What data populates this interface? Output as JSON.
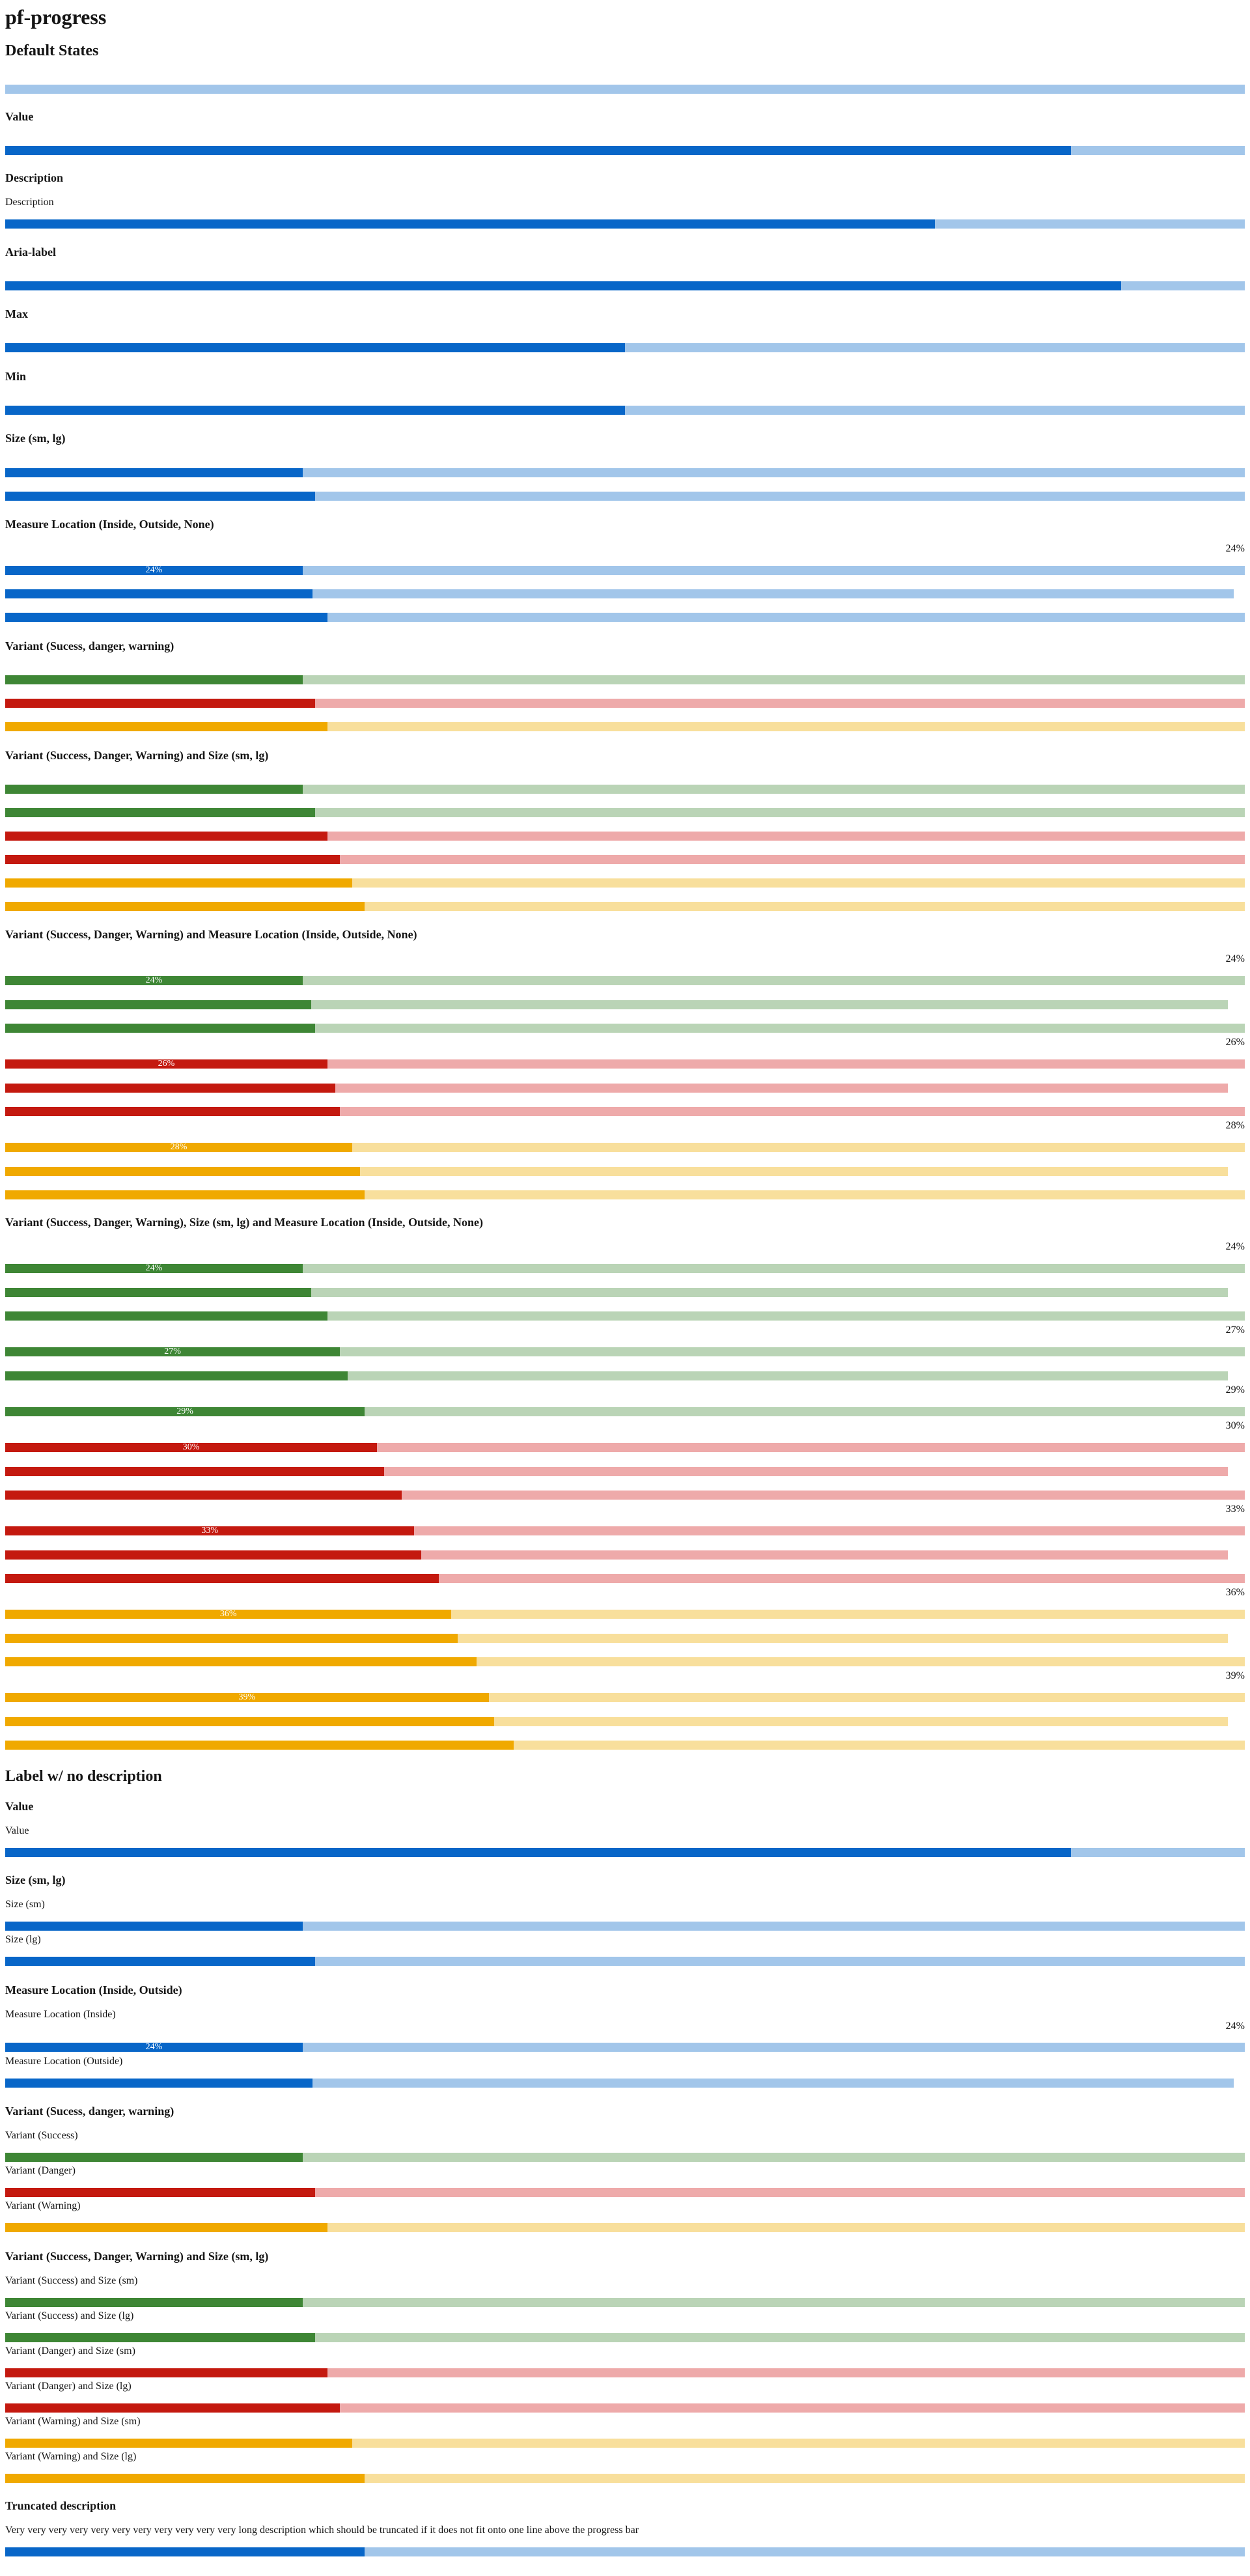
{
  "page_title": "pf-progress",
  "labels": {
    "default_states": "Default States",
    "value": "Value",
    "description": "Description",
    "description_text": "Description",
    "aria_label": "Aria-label",
    "max": "Max",
    "min": "Min",
    "size": "Size (sm, lg)",
    "measure_location": "Measure Location (Inside, Outside, None)",
    "variant": "Variant (Sucess, danger, warning)",
    "variant_size": "Variant (Success, Danger, Warning) and Size (sm, lg)",
    "variant_measure": "Variant (Success, Danger, Warning) and Measure Location (Inside, Outside, None)",
    "variant_size_measure": "Variant (Success, Danger, Warning), Size (sm, lg) and Measure Location (Inside, Outside, None)",
    "label_no_description": "Label w/ no description",
    "value2": "Value",
    "value2_desc": "Value",
    "size2": "Size (sm, lg)",
    "size_sm": "Size (sm)",
    "size_lg": "Size (lg)",
    "measure_location2": "Measure Location (Inside, Outside)",
    "measure_inside": "Measure Location (Inside)",
    "measure_outside": "Measure Location (Outside)",
    "variant2": "Variant (Sucess, danger, warning)",
    "variant_success": "Variant (Success)",
    "variant_danger": "Variant (Danger)",
    "variant_warning": "Variant (Warning)",
    "variant_size2": "Variant (Success, Danger, Warning) and Size (sm, lg)",
    "vs_success_sm": "Variant (Success) and Size (sm)",
    "vs_success_lg": "Variant (Success) and Size (lg)",
    "vs_danger_sm": "Variant (Danger) and Size (sm)",
    "vs_danger_lg": "Variant (Danger) and Size (lg)",
    "vs_warning_sm": "Variant (Warning) and Size (sm)",
    "vs_warning_lg": "Variant (Warning) and Size (lg)",
    "truncated": "Truncated description",
    "truncated_text": "Very very very very very very very very very very very long description which should be truncated if it does not fit onto one line above the progress bar"
  },
  "measures": {
    "m24": "24%",
    "m26": "26%",
    "m27": "27%",
    "m28": "28%",
    "m29": "29%",
    "m30": "30%",
    "m33": "33%",
    "m36": "36%",
    "m39": "39%"
  },
  "colors": {
    "default_fill": "#0866c8",
    "default_track": "#a2c6ea",
    "success_fill": "#3e8635",
    "success_track": "#bad4b6",
    "danger_fill": "#c4190f",
    "danger_track": "#eeaaaa",
    "warning_fill": "#f0a900",
    "warning_track": "#f8df9c"
  },
  "progress_values": {
    "default_states": 0,
    "value": 0.86,
    "description": 0.75,
    "aria_label": 0.9,
    "max": 0.5,
    "min": 0.5,
    "size_sm": 0.24,
    "size_lg": 0.25,
    "measure_inside": 0.24,
    "measure_outside": 0.25,
    "measure_none": 0.26,
    "variant_success": 0.24,
    "variant_danger": 0.25,
    "variant_warning": 0.26,
    "vs_success_sm": 0.24,
    "vs_success_lg": 0.25,
    "vs_danger_sm": 0.26,
    "vs_danger_lg": 0.27,
    "vs_warning_sm": 0.28,
    "vs_warning_lg": 0.29,
    "vm_success_inside": 0.24,
    "vm_success_outside": 0.25,
    "vm_success_none": 0.25,
    "vm_danger_inside": 0.26,
    "vm_danger_outside": 0.27,
    "vm_danger_none": 0.27,
    "vm_warning_inside": 0.28,
    "vm_warning_outside": 0.29,
    "vm_warning_none": 0.29,
    "vsm_success_sm_inside": 0.24,
    "vsm_success_sm_outside": 0.25,
    "vsm_success_sm_none": 0.26,
    "vsm_success_lg_inside": 0.27,
    "vsm_success_lg_outside": 0.28,
    "vsm_success_lg_none": 0.29,
    "vsm_danger_sm_inside": 0.3,
    "vsm_danger_sm_outside": 0.31,
    "vsm_danger_sm_none": 0.32,
    "vsm_danger_lg_inside": 0.33,
    "vsm_danger_lg_outside": 0.34,
    "vsm_danger_lg_none": 0.35,
    "vsm_warning_sm_inside": 0.36,
    "vsm_warning_sm_outside": 0.37,
    "vsm_warning_sm_none": 0.38,
    "vsm_warning_lg_inside": 0.39,
    "vsm_warning_lg_outside": 0.4,
    "vsm_warning_lg_none": 0.41,
    "lbl_value": 0.86,
    "lbl_size_sm": 0.24,
    "lbl_size_lg": 0.25,
    "lbl_measure_inside": 0.24,
    "lbl_measure_outside": 0.25,
    "lbl_variant_success": 0.24,
    "lbl_variant_danger": 0.25,
    "lbl_variant_warning": 0.26,
    "lbl_vs_success_sm": 0.24,
    "lbl_vs_success_lg": 0.25,
    "lbl_vs_danger_sm": 0.26,
    "lbl_vs_danger_lg": 0.27,
    "lbl_vs_warning_sm": 0.28,
    "lbl_vs_warning_lg": 0.29,
    "truncated": 0.29
  }
}
